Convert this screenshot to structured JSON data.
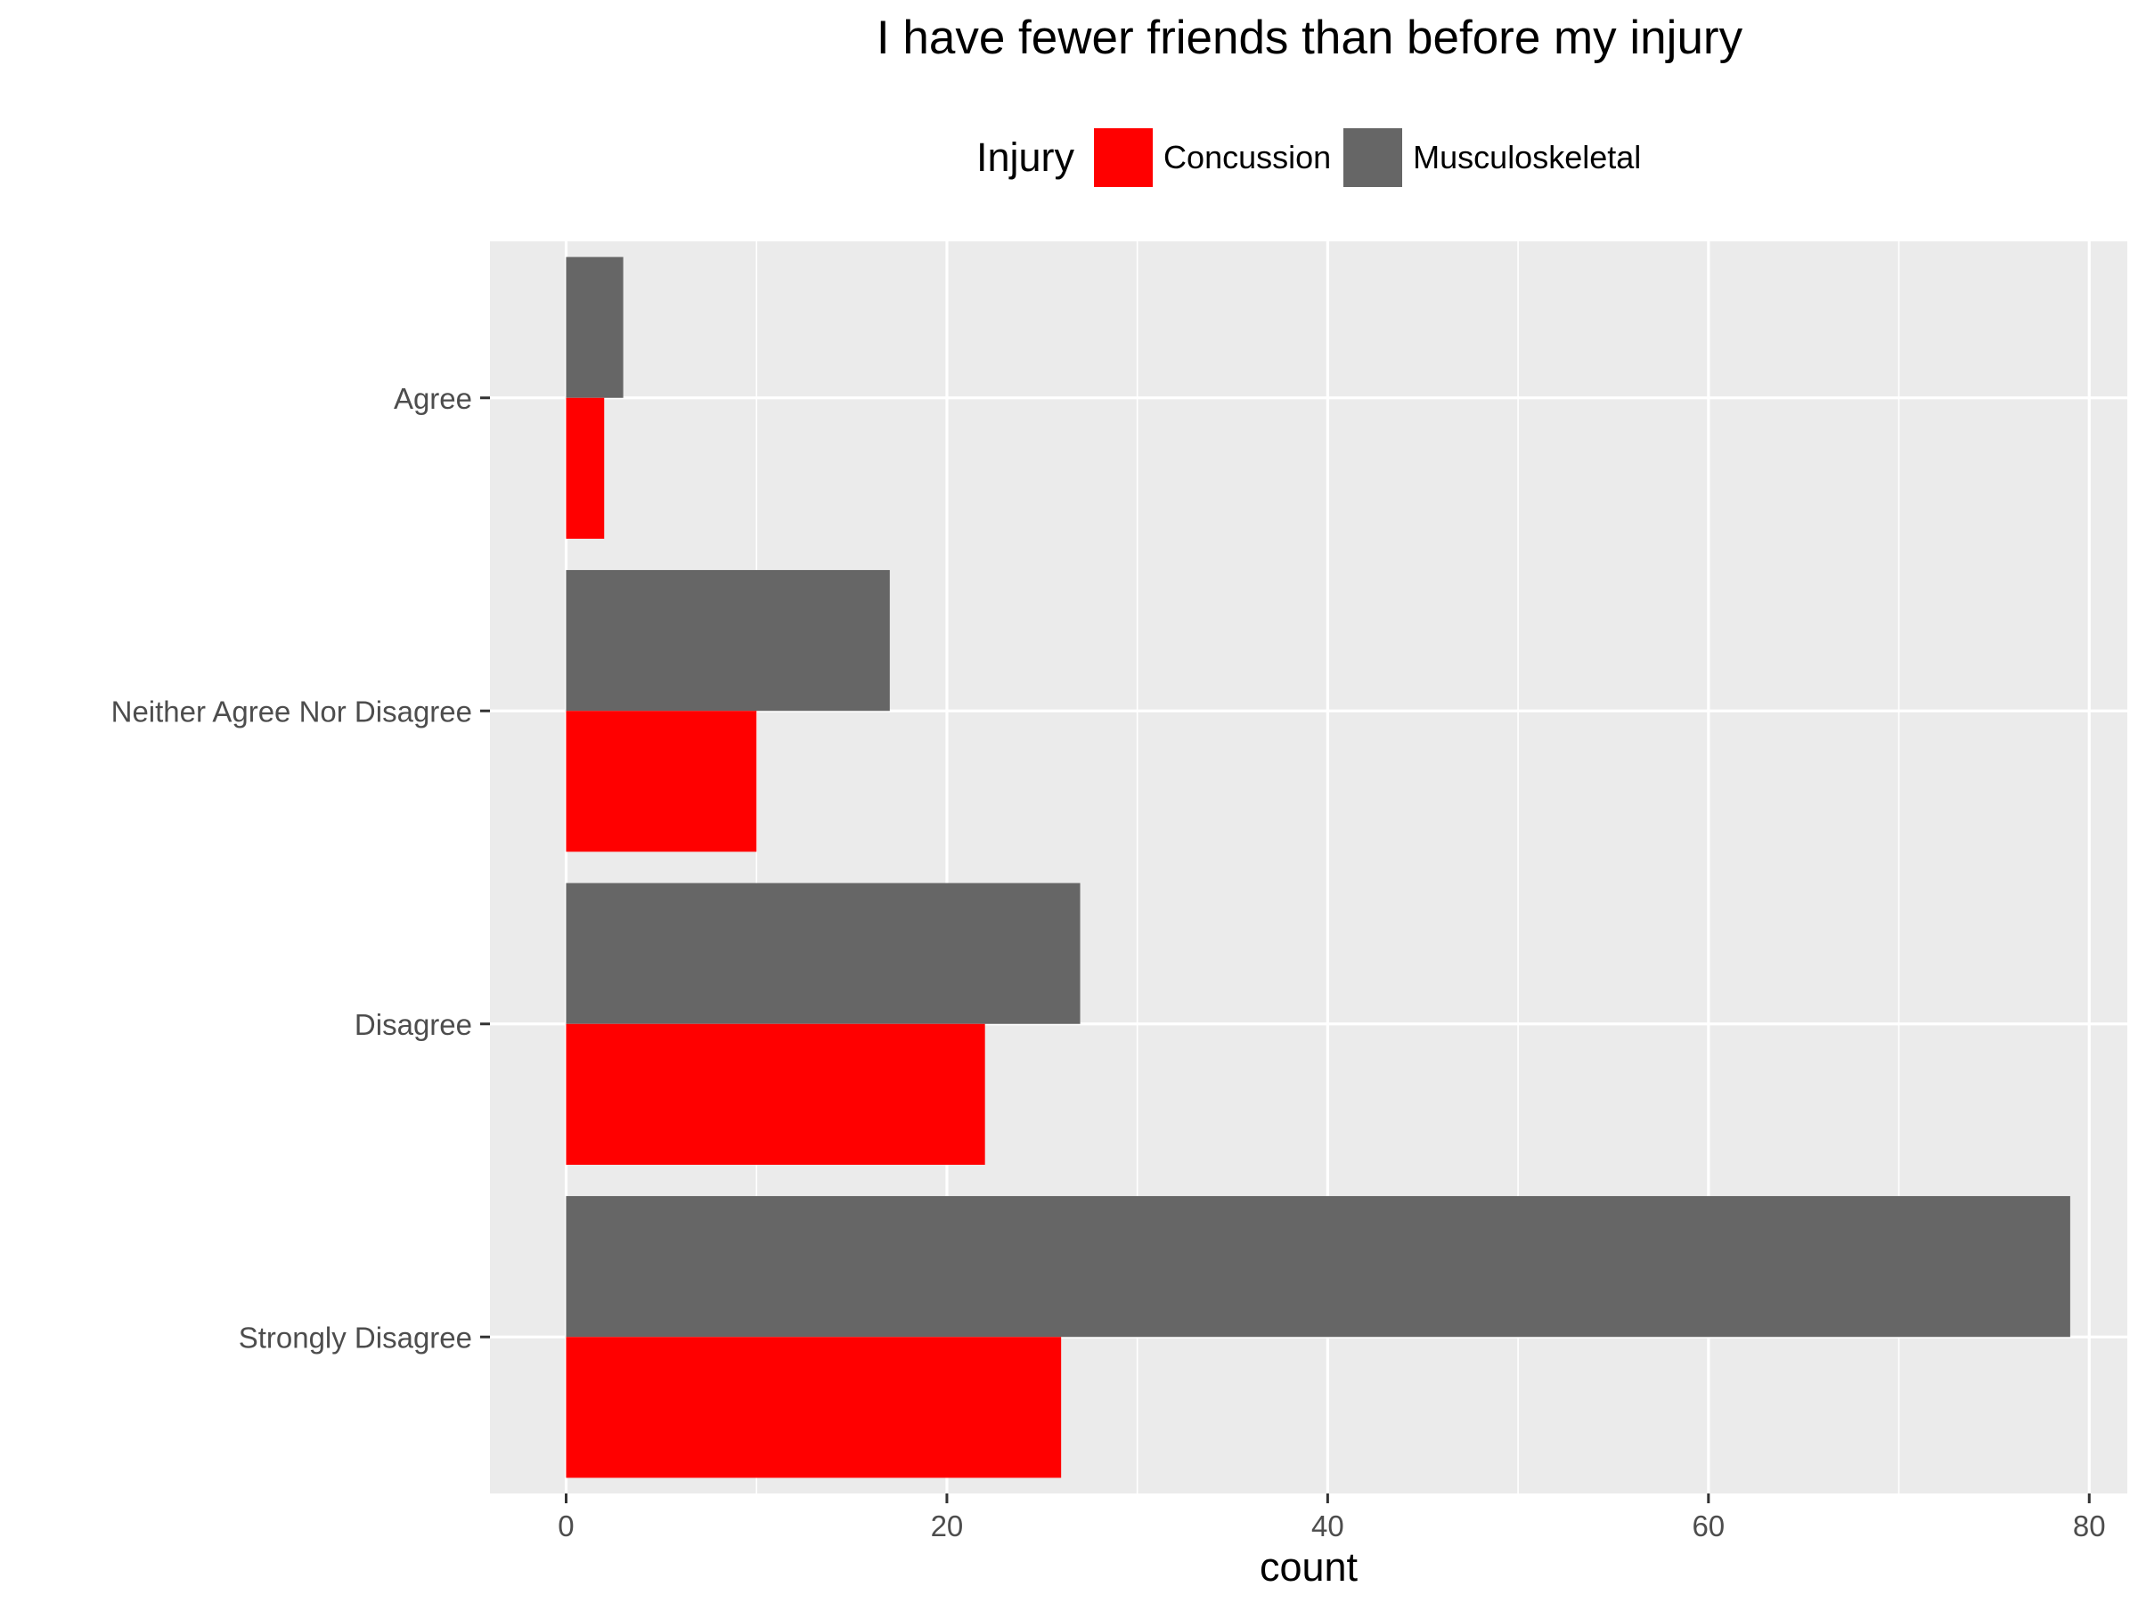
{
  "chart_data": {
    "type": "bar",
    "orientation": "horizontal",
    "title": "I have fewer friends than before my injury",
    "xlabel": "count",
    "ylabel": "",
    "xlim": [
      -4,
      82
    ],
    "x_ticks": [
      0,
      20,
      40,
      60,
      80
    ],
    "categories": [
      "Agree",
      "Neither Agree Nor Disagree",
      "Disagree",
      "Strongly Disagree"
    ],
    "legend": {
      "title": "Injury",
      "position": "top"
    },
    "series": [
      {
        "name": "Concussion",
        "color": "#ff0000",
        "values": [
          2,
          10,
          22,
          26
        ]
      },
      {
        "name": "Musculoskeletal",
        "color": "#666666",
        "values": [
          3,
          17,
          27,
          79
        ]
      }
    ],
    "grid": true,
    "panel_background": "#ebebeb"
  }
}
